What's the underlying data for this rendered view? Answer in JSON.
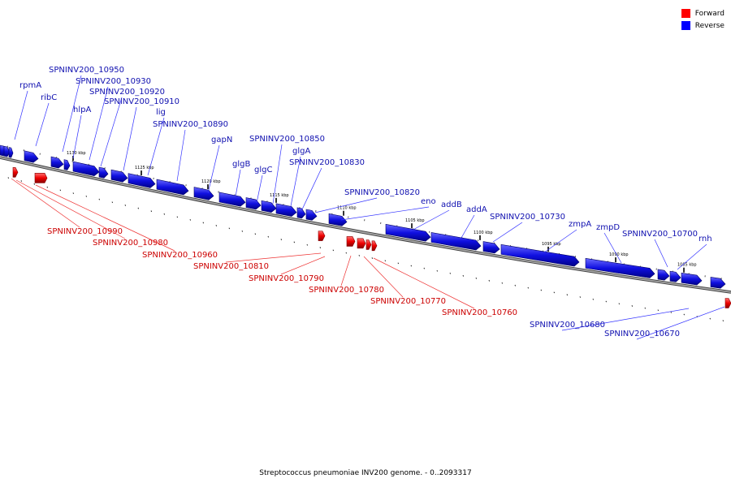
{
  "legend": {
    "forward": {
      "label": "Forward",
      "color": "#ff0000"
    },
    "reverse": {
      "label": "Reverse",
      "color": "#0000ff"
    }
  },
  "caption": "Streptococcus pneumoniae INV200 genome. - 0..2093317",
  "scale": {
    "unit": "kbp",
    "ticks": [
      "1130 kbp",
      "1125 kbp",
      "1120 kbp",
      "1115 kbp",
      "1110 kbp",
      "1105 kbp",
      "1100 kbp",
      "1095 kbp",
      "1090 kbp",
      "1085 kbp"
    ]
  },
  "genes": {
    "reverse": [
      "rpmA",
      "ribC",
      "SPNINV200_10950",
      "hlpA",
      "SPNINV200_10930",
      "SPNINV200_10920",
      "SPNINV200_10910",
      "lig",
      "SPNINV200_10890",
      "gapN",
      "glgB",
      "glgC",
      "SPNINV200_10850",
      "glgA",
      "SPNINV200_10830",
      "SPNINV200_10820",
      "eno",
      "addB",
      "addA",
      "SPNINV200_10730",
      "zmpA",
      "zmpD",
      "SPNINV200_10700",
      "rnh",
      "SPNINV200_10680",
      "SPNINV200_10670"
    ],
    "forward": [
      "SPNINV200_10990",
      "SPNINV200_10980",
      "SPNINV200_10960",
      "SPNINV200_10810",
      "SPNINV200_10790",
      "SPNINV200_10780",
      "SPNINV200_10770",
      "SPNINV200_10760"
    ]
  },
  "colors": {
    "reverse": "#1010e0",
    "forward": "#ee0000",
    "backbone": "#777777"
  }
}
